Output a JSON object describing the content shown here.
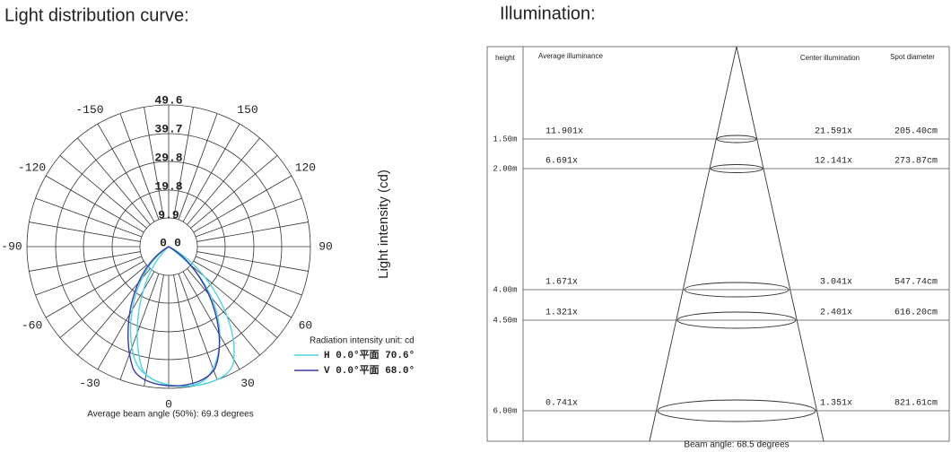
{
  "polar": {
    "title": "Light distribution curve:",
    "ring_labels": [
      "49.6",
      "39.7",
      "29.8",
      "19.8",
      "9.9",
      "0"
    ],
    "angle_labels": [
      "0",
      "30",
      "60",
      "90",
      "120",
      "150",
      "-30",
      "-60",
      "-90",
      "-120",
      "-150"
    ],
    "axis_label": "Light intensity (cd)",
    "legend": {
      "title": "Radiation intensity unit: cd",
      "entries": [
        "H 0.0°平面 70.6°",
        "V 0.0°平面 68.0°"
      ]
    },
    "caption": "Average beam angle (50%): 69.3 degrees"
  },
  "illumination": {
    "title": "Illumination:",
    "headers": [
      "height",
      "Average illuminance",
      "Center illumination",
      "Spot diameter"
    ],
    "rows": [
      [
        "1.50m",
        "11.901x",
        "21.591x",
        "205.40cm"
      ],
      [
        "2.00m",
        "6.691x",
        "12.141x",
        "273.87cm"
      ],
      [
        "4.00m",
        "1.671x",
        "3.041x",
        "547.74cm"
      ],
      [
        "4.50m",
        "1.321x",
        "2.401x",
        "616.20cm"
      ],
      [
        "6.00m",
        "0.741x",
        "1.351x",
        "821.61cm"
      ]
    ],
    "caption": "Beam angle: 68.5 degrees"
  }
}
